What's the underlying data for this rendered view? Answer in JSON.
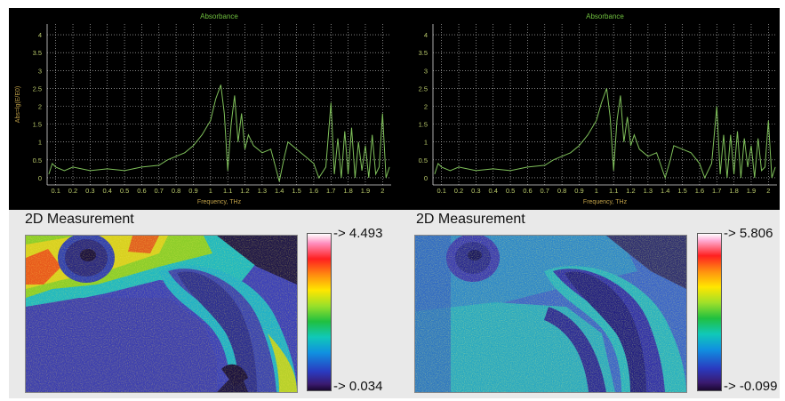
{
  "top_charts": {
    "left": {
      "title": "Absorbance",
      "ylabel": "Abs=lg(E/E0)",
      "xlabel": "Frequency, THz"
    },
    "right": {
      "title": "Absorbance",
      "ylabel": "",
      "xlabel": "Frequency, THz"
    }
  },
  "colors": {
    "trace": "#7fc05a",
    "grid": "#d0d0d0",
    "background": "#000000",
    "panel": "#e9e9e9"
  },
  "measurements": {
    "left": {
      "title": "2D Measurement",
      "max_label": "-> 4.493",
      "min_label": "-> 0.034"
    },
    "right": {
      "title": "2D Measurement",
      "max_label": "-> 5.806",
      "min_label": "-> -0.099"
    }
  },
  "chart_data": [
    {
      "type": "line",
      "title": "Absorbance",
      "xlabel": "Frequency, THz",
      "ylabel": "Abs=lg(E/E0)",
      "xlim": [
        0.05,
        2.05
      ],
      "ylim": [
        -0.2,
        4.3
      ],
      "x_ticks": [
        0.1,
        0.2,
        0.3,
        0.4,
        0.5,
        0.6,
        0.7,
        0.8,
        0.9,
        1,
        1.1,
        1.2,
        1.3,
        1.4,
        1.5,
        1.6,
        1.7,
        1.8,
        1.9,
        2
      ],
      "y_ticks": [
        0,
        0.5,
        1,
        1.5,
        2,
        2.5,
        3,
        3.5,
        4
      ],
      "grid": true,
      "series": [
        {
          "x": [
            0.06,
            0.08,
            0.1,
            0.15,
            0.2,
            0.3,
            0.4,
            0.5,
            0.6,
            0.7,
            0.75,
            0.8,
            0.85,
            0.9,
            0.95,
            1.0,
            1.03,
            1.06,
            1.08,
            1.1,
            1.12,
            1.14,
            1.16,
            1.18,
            1.2,
            1.22,
            1.25,
            1.3,
            1.35,
            1.4,
            1.43,
            1.45,
            1.5,
            1.55,
            1.6,
            1.63,
            1.67,
            1.7,
            1.72,
            1.74,
            1.76,
            1.78,
            1.8,
            1.82,
            1.84,
            1.86,
            1.88,
            1.9,
            1.92,
            1.94,
            1.96,
            1.98,
            2.0,
            2.02,
            2.04
          ],
          "y": [
            0.1,
            0.4,
            0.3,
            0.2,
            0.3,
            0.2,
            0.25,
            0.2,
            0.3,
            0.35,
            0.5,
            0.6,
            0.7,
            0.9,
            1.2,
            1.6,
            2.2,
            2.6,
            1.8,
            0.2,
            1.5,
            2.3,
            1.0,
            1.8,
            0.8,
            1.2,
            0.9,
            0.7,
            0.8,
            -0.1,
            0.6,
            1.0,
            0.8,
            0.6,
            0.4,
            0.0,
            0.3,
            2.1,
            0.1,
            1.1,
            0.0,
            1.3,
            0.1,
            1.4,
            0.0,
            1.0,
            0.2,
            0.9,
            0.0,
            1.2,
            0.1,
            0.3,
            1.8,
            0.0,
            0.3
          ]
        }
      ]
    },
    {
      "type": "line",
      "title": "Absorbance",
      "xlabel": "Frequency, THz",
      "ylabel": "",
      "xlim": [
        0.05,
        2.05
      ],
      "ylim": [
        -0.2,
        4.3
      ],
      "x_ticks": [
        0.1,
        0.2,
        0.3,
        0.4,
        0.5,
        0.6,
        0.7,
        0.8,
        0.9,
        1,
        1.1,
        1.2,
        1.3,
        1.4,
        1.5,
        1.6,
        1.7,
        1.8,
        1.9,
        2
      ],
      "y_ticks": [
        0,
        0.5,
        1,
        1.5,
        2,
        2.5,
        3,
        3.5,
        4
      ],
      "grid": true,
      "series": [
        {
          "x": [
            0.06,
            0.08,
            0.1,
            0.15,
            0.2,
            0.3,
            0.4,
            0.5,
            0.6,
            0.7,
            0.75,
            0.8,
            0.85,
            0.9,
            0.95,
            1.0,
            1.03,
            1.06,
            1.08,
            1.1,
            1.12,
            1.14,
            1.16,
            1.18,
            1.2,
            1.22,
            1.25,
            1.3,
            1.35,
            1.4,
            1.43,
            1.45,
            1.5,
            1.55,
            1.6,
            1.63,
            1.67,
            1.7,
            1.72,
            1.74,
            1.76,
            1.78,
            1.8,
            1.82,
            1.84,
            1.86,
            1.88,
            1.9,
            1.92,
            1.94,
            1.96,
            1.98,
            2.0,
            2.02,
            2.04
          ],
          "y": [
            0.1,
            0.4,
            0.3,
            0.2,
            0.3,
            0.2,
            0.25,
            0.2,
            0.3,
            0.35,
            0.5,
            0.6,
            0.7,
            0.9,
            1.2,
            1.6,
            2.1,
            2.5,
            1.7,
            0.2,
            1.6,
            2.3,
            1.0,
            1.7,
            0.9,
            1.2,
            0.8,
            0.6,
            0.7,
            0.0,
            0.5,
            0.9,
            0.8,
            0.7,
            0.4,
            0.0,
            0.4,
            2.0,
            0.1,
            1.2,
            0.0,
            1.2,
            0.1,
            1.3,
            0.0,
            1.1,
            0.3,
            0.9,
            0.0,
            1.1,
            0.2,
            0.3,
            1.6,
            0.0,
            0.3
          ]
        }
      ]
    }
  ]
}
